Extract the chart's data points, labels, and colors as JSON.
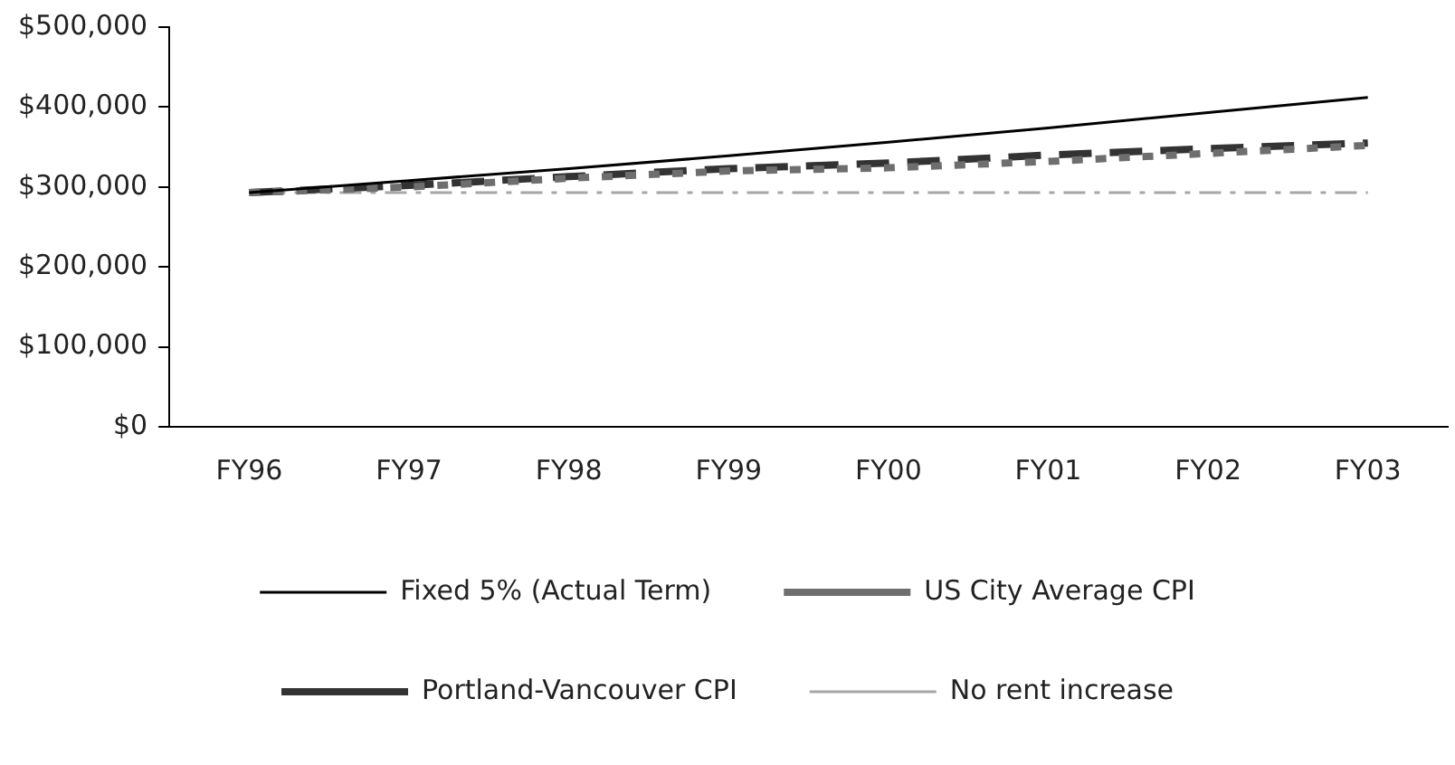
{
  "chart_data": {
    "type": "line",
    "categories": [
      "FY96",
      "FY97",
      "FY98",
      "FY99",
      "FY00",
      "FY01",
      "FY02",
      "FY03"
    ],
    "series": [
      {
        "name": "Fixed 5% (Actual Term)",
        "color": "#000000",
        "line_style": "solid",
        "values": [
          293000,
          308000,
          323000,
          339000,
          356000,
          374000,
          393000,
          412000
        ]
      },
      {
        "name": "US City Average CPI",
        "color": "#6e6e6e",
        "line_style": "dotted",
        "values": [
          293000,
          300000,
          311000,
          320000,
          324000,
          332000,
          342000,
          352000
        ]
      },
      {
        "name": "Portland-Vancouver CPI",
        "color": "#333333",
        "line_style": "dashed",
        "values": [
          293000,
          302000,
          313000,
          323000,
          330000,
          340000,
          348000,
          355000
        ]
      },
      {
        "name": "No rent increase",
        "color": "#a6a6a6",
        "line_style": "dashdot",
        "values": [
          293000,
          293000,
          293000,
          293000,
          293000,
          293000,
          293000,
          293000
        ]
      }
    ],
    "ylim": [
      0,
      500000
    ],
    "yticks": [
      {
        "value": 0,
        "label": "$0"
      },
      {
        "value": 100000,
        "label": "$100,000"
      },
      {
        "value": 200000,
        "label": "$200,000"
      },
      {
        "value": 300000,
        "label": "$300,000"
      },
      {
        "value": 400000,
        "label": "$400,000"
      },
      {
        "value": 500000,
        "label": "$500,000"
      }
    ],
    "grid": false,
    "legend": "bottom",
    "marker": "none"
  }
}
